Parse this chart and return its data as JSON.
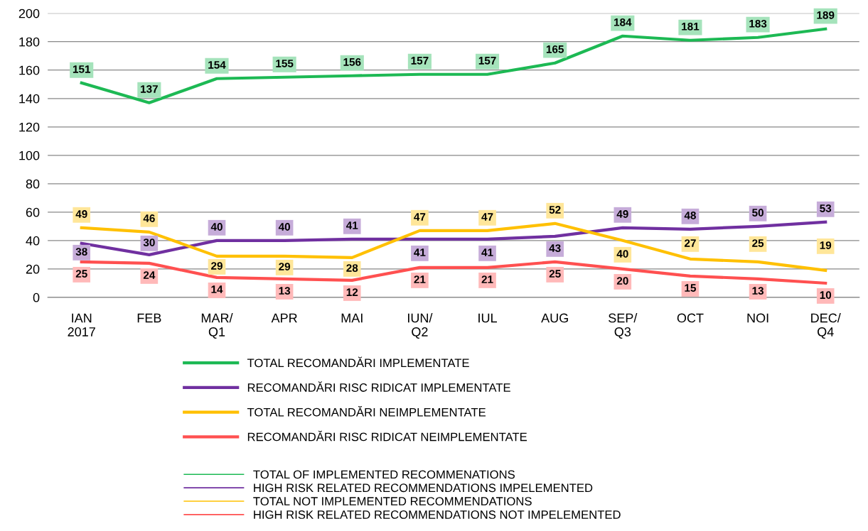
{
  "chart_data": {
    "type": "line",
    "categories": [
      "IAN\n2017",
      "FEB",
      "MAR/\nQ1",
      "APR",
      "MAI",
      "IUN/\nQ2",
      "IUL",
      "AUG",
      "SEP/\nQ3",
      "OCT",
      "NOI",
      "DEC/\nQ4"
    ],
    "series": [
      {
        "name": "TOTAL RECOMANDĂRI IMPLEMENTATE",
        "color": "#1db954",
        "values": [
          151,
          137,
          154,
          155,
          156,
          157,
          157,
          165,
          184,
          181,
          183,
          189
        ]
      },
      {
        "name": "RECOMANDĂRI RISC RIDICAT IMPLEMENTATE",
        "color": "#7030a0",
        "values": [
          38,
          30,
          40,
          40,
          41,
          41,
          41,
          43,
          49,
          48,
          50,
          53
        ]
      },
      {
        "name": "TOTAL RECOMANDĂRI NEIMPLEMENTATE",
        "color": "#ffc000",
        "values": [
          49,
          46,
          29,
          29,
          28,
          47,
          47,
          52,
          40,
          27,
          25,
          19
        ]
      },
      {
        "name": "RECOMANDĂRI RISC RIDICAT NEIMPLEMENTATE",
        "color": "#ff5050",
        "values": [
          25,
          24,
          14,
          13,
          12,
          21,
          21,
          25,
          20,
          15,
          13,
          10
        ]
      }
    ],
    "annotations": [
      "TOTAL OF IMPLEMENTED RECOMMENATIONS",
      "HIGH RISK RELATED RECOMMENDATIONS IMPELEMENTED",
      "TOTAL NOT IMPLEMENTED RECOMMENDATIONS",
      "HIGH RISK RELATED RECOMMENDATIONS NOT IMPELEMENTED"
    ],
    "ylim": [
      0,
      200
    ],
    "yticks": [
      0,
      20,
      40,
      60,
      80,
      100,
      120,
      140,
      160,
      180,
      200
    ],
    "grid": "y",
    "legend": "bottom",
    "data_labels": true,
    "marker": "none",
    "line_style": "solid"
  }
}
